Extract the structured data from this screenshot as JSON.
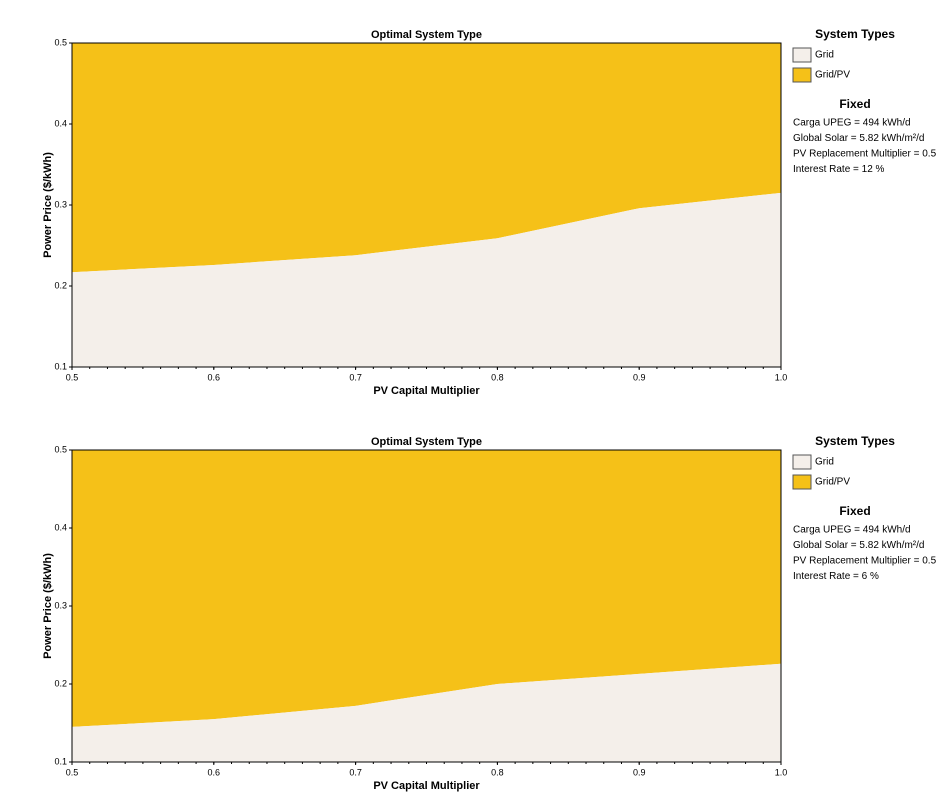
{
  "chart_data": [
    {
      "type": "area",
      "title": "Optimal System Type",
      "xlabel": "PV Capital Multiplier",
      "ylabel": "Power Price  ($/kWh)",
      "x": [
        0.5,
        0.6,
        0.7,
        0.8,
        0.9,
        1.0
      ],
      "boundary": [
        0.217,
        0.226,
        0.238,
        0.259,
        0.296,
        0.315
      ],
      "xlim": [
        0.5,
        1.0
      ],
      "ylim": [
        0.1,
        0.5
      ],
      "xticks": [
        0.5,
        0.6,
        0.7,
        0.8,
        0.9,
        {
          "value": 1.0,
          "label": "1.0"
        }
      ],
      "yticks": [
        0.1,
        0.2,
        0.3,
        0.4,
        0.5
      ],
      "legend_title": "System Types",
      "legend": [
        {
          "name": "Grid",
          "color": "#f4efea"
        },
        {
          "name": "Grid/PV",
          "color": "#f5c118"
        }
      ],
      "fixed_title": "Fixed",
      "fixed": [
        "Carga UPEG = 494 kWh/d",
        "Global Solar = 5.82 kWh/m²/d",
        "PV Replacement Multiplier = 0.5",
        "Interest Rate = 12 %"
      ]
    },
    {
      "type": "area",
      "title": "Optimal System Type",
      "xlabel": "PV Capital Multiplier",
      "ylabel": "Power Price  ($/kWh)",
      "x": [
        0.5,
        0.6,
        0.7,
        0.8,
        0.9,
        1.0
      ],
      "boundary": [
        0.145,
        0.155,
        0.172,
        0.2,
        0.213,
        0.226
      ],
      "xlim": [
        0.5,
        1.0
      ],
      "ylim": [
        0.1,
        0.5
      ],
      "xticks": [
        0.5,
        0.6,
        0.7,
        0.8,
        0.9,
        {
          "value": 1.0,
          "label": "1.0"
        }
      ],
      "yticks": [
        0.1,
        0.2,
        0.3,
        0.4,
        0.5
      ],
      "legend_title": "System Types",
      "legend": [
        {
          "name": "Grid",
          "color": "#f4efea"
        },
        {
          "name": "Grid/PV",
          "color": "#f5c118"
        }
      ],
      "fixed_title": "Fixed",
      "fixed": [
        "Carga UPEG = 494 kWh/d",
        "Global Solar = 5.82 kWh/m²/d",
        "PV Replacement Multiplier = 0.5",
        "Interest Rate = 6 %"
      ]
    }
  ]
}
